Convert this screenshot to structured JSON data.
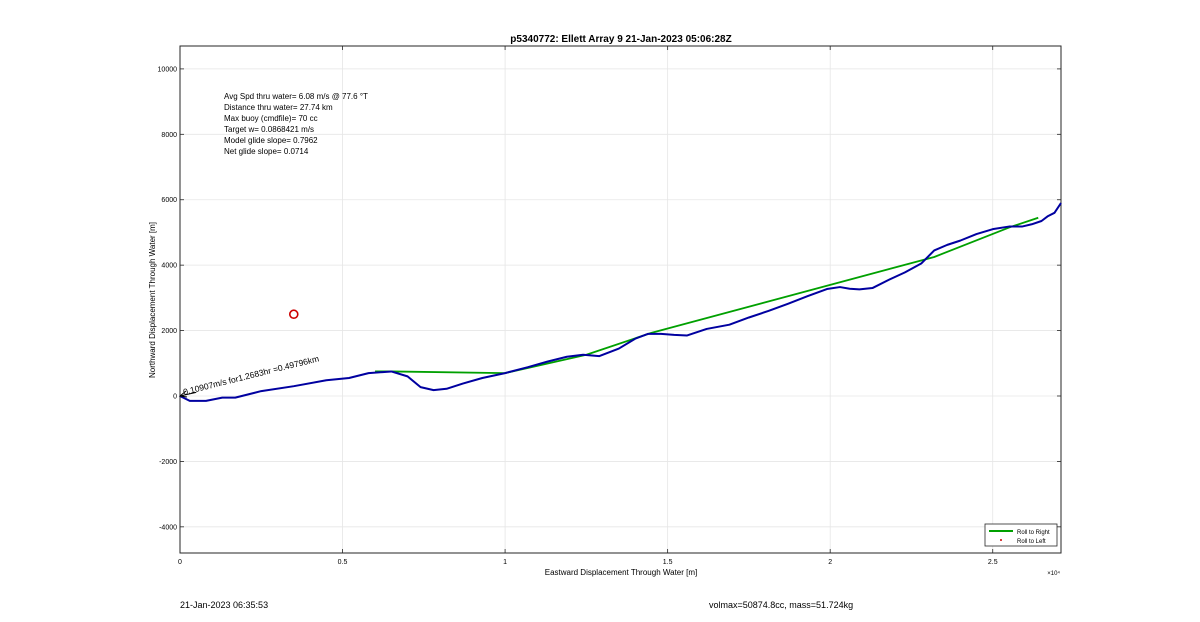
{
  "chart_data": {
    "type": "line",
    "title": "p5340772: Ellett Array 9 21-Jan-2023 05:06:28Z",
    "xlabel": "Eastward Displacement Through Water [m]",
    "ylabel": "Northward Displacement Through Water [m]",
    "x_exponent_label": "×10⁴",
    "xlim": [
      0,
      27100
    ],
    "ylim": [
      -4800,
      10700
    ],
    "xticks": [
      0,
      5000,
      10000,
      15000,
      20000,
      25000
    ],
    "xtick_labels": [
      "0",
      "0.5",
      "1",
      "1.5",
      "2",
      "2.5"
    ],
    "yticks": [
      -4000,
      -2000,
      0,
      2000,
      4000,
      6000,
      8000,
      10000
    ],
    "ytick_labels": [
      "-4000",
      "-2000",
      "0",
      "2000",
      "4000",
      "6000",
      "8000",
      "10000"
    ],
    "grid": true,
    "legend_position": "bottom-right",
    "annotations": [
      "Avg Spd thru water=  6.08 m/s @  77.6 °T",
      "Distance thru water= 27.74 km",
      "Max buoy (cmdfile)= 70 cc",
      "Target w= 0.0868421 m/s",
      "Model glide slope= 0.7962",
      "Net glide slope= 0.0714"
    ],
    "current_label": "0.10907m/s for1.2683hr =0.49796km",
    "current_arrow": {
      "x": [
        0,
        500
      ],
      "y": [
        0,
        110
      ]
    },
    "marker_point": {
      "x": 3500,
      "y": 2500,
      "color": "#cc0000"
    },
    "series": [
      {
        "name": "Roll to Right",
        "color": "#00a000",
        "x": [
          6000,
          6500,
          10000,
          12500,
          14500,
          23200,
          25500,
          26400
        ],
        "y": [
          750,
          750,
          700,
          1260,
          1930,
          4250,
          5150,
          5450
        ]
      },
      {
        "name": "Roll to Left",
        "color": "#cc0000",
        "x": [],
        "y": []
      },
      {
        "color": "#0000a0",
        "x": [
          0,
          300,
          800,
          1300,
          1700,
          2500,
          3500,
          4500,
          5200,
          5800,
          6500,
          7000,
          7400,
          7800,
          8200,
          8700,
          9300,
          10000,
          10700,
          11300,
          11900,
          12400,
          12900,
          13500,
          14000,
          14400,
          14800,
          15200,
          15600,
          16200,
          16900,
          17500,
          18100,
          18700,
          19300,
          19900,
          20300,
          20600,
          20900,
          21300,
          21800,
          22300,
          22800,
          23200,
          23600,
          24000,
          24500,
          25000,
          25500,
          25900,
          26200,
          26500,
          26700,
          26900,
          27100
        ],
        "y": [
          0,
          -150,
          -150,
          -50,
          -50,
          150,
          300,
          480,
          550,
          700,
          750,
          600,
          270,
          180,
          220,
          380,
          550,
          700,
          880,
          1050,
          1200,
          1260,
          1220,
          1450,
          1750,
          1900,
          1900,
          1870,
          1850,
          2050,
          2180,
          2400,
          2600,
          2820,
          3050,
          3270,
          3330,
          3280,
          3260,
          3300,
          3550,
          3780,
          4050,
          4450,
          4620,
          4750,
          4950,
          5100,
          5180,
          5180,
          5250,
          5350,
          5500,
          5600,
          5900
        ]
      }
    ]
  },
  "footer": {
    "timestamp": "21-Jan-2023 06:35:53",
    "volume_mass": "volmax=50874.8cc, mass=51.724kg"
  }
}
